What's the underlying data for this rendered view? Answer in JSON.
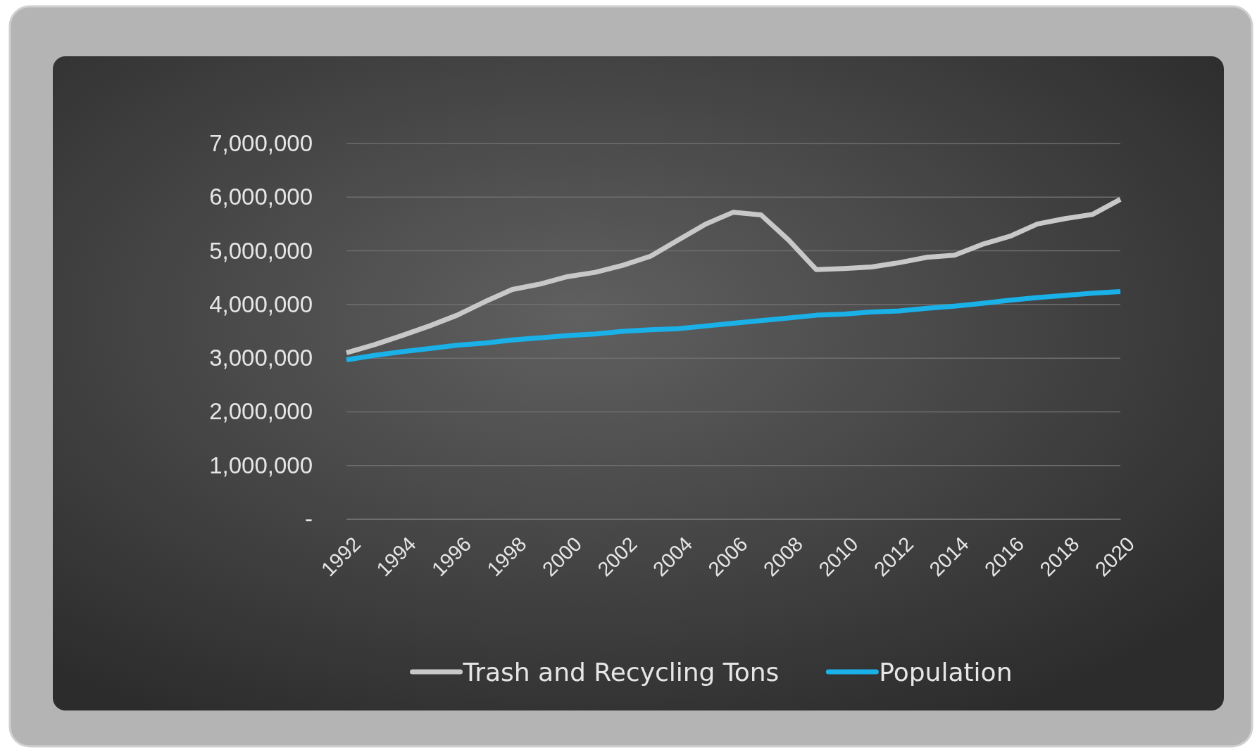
{
  "chart_data": {
    "type": "line",
    "x": [
      1992,
      1993,
      1994,
      1995,
      1996,
      1997,
      1998,
      1999,
      2000,
      2001,
      2002,
      2003,
      2004,
      2005,
      2006,
      2007,
      2008,
      2009,
      2010,
      2011,
      2012,
      2013,
      2014,
      2015,
      2016,
      2017,
      2018,
      2019,
      2020
    ],
    "series": [
      {
        "name": "Trash and Recycling Tons",
        "color": "#c8c8c8",
        "values": [
          3100000,
          3250000,
          3420000,
          3600000,
          3800000,
          4050000,
          4280000,
          4380000,
          4520000,
          4600000,
          4730000,
          4900000,
          5200000,
          5500000,
          5720000,
          5670000,
          5200000,
          4650000,
          4670000,
          4700000,
          4780000,
          4880000,
          4920000,
          5120000,
          5270000,
          5500000,
          5600000,
          5680000,
          5960000
        ]
      },
      {
        "name": "Population",
        "color": "#1ab0e8",
        "values": [
          2970000,
          3050000,
          3120000,
          3180000,
          3240000,
          3280000,
          3340000,
          3380000,
          3420000,
          3450000,
          3500000,
          3530000,
          3550000,
          3600000,
          3650000,
          3700000,
          3750000,
          3800000,
          3820000,
          3860000,
          3880000,
          3930000,
          3970000,
          4020000,
          4080000,
          4130000,
          4170000,
          4210000,
          4240000
        ]
      }
    ],
    "xlim": [
      1992,
      2020
    ],
    "xticks": [
      1992,
      1994,
      1996,
      1998,
      2000,
      2002,
      2004,
      2006,
      2008,
      2010,
      2012,
      2014,
      2016,
      2018,
      2020
    ],
    "ylim": [
      0,
      7000000
    ],
    "yticks": [
      {
        "value": 0,
        "label": "-"
      },
      {
        "value": 1000000,
        "label": "1,000,000"
      },
      {
        "value": 2000000,
        "label": "2,000,000"
      },
      {
        "value": 3000000,
        "label": "3,000,000"
      },
      {
        "value": 4000000,
        "label": "4,000,000"
      },
      {
        "value": 5000000,
        "label": "5,000,000"
      },
      {
        "value": 6000000,
        "label": "6,000,000"
      },
      {
        "value": 7000000,
        "label": "7,000,000"
      }
    ],
    "grid": "y",
    "legend": "bottom",
    "line_style": "solid",
    "marker": "none"
  }
}
